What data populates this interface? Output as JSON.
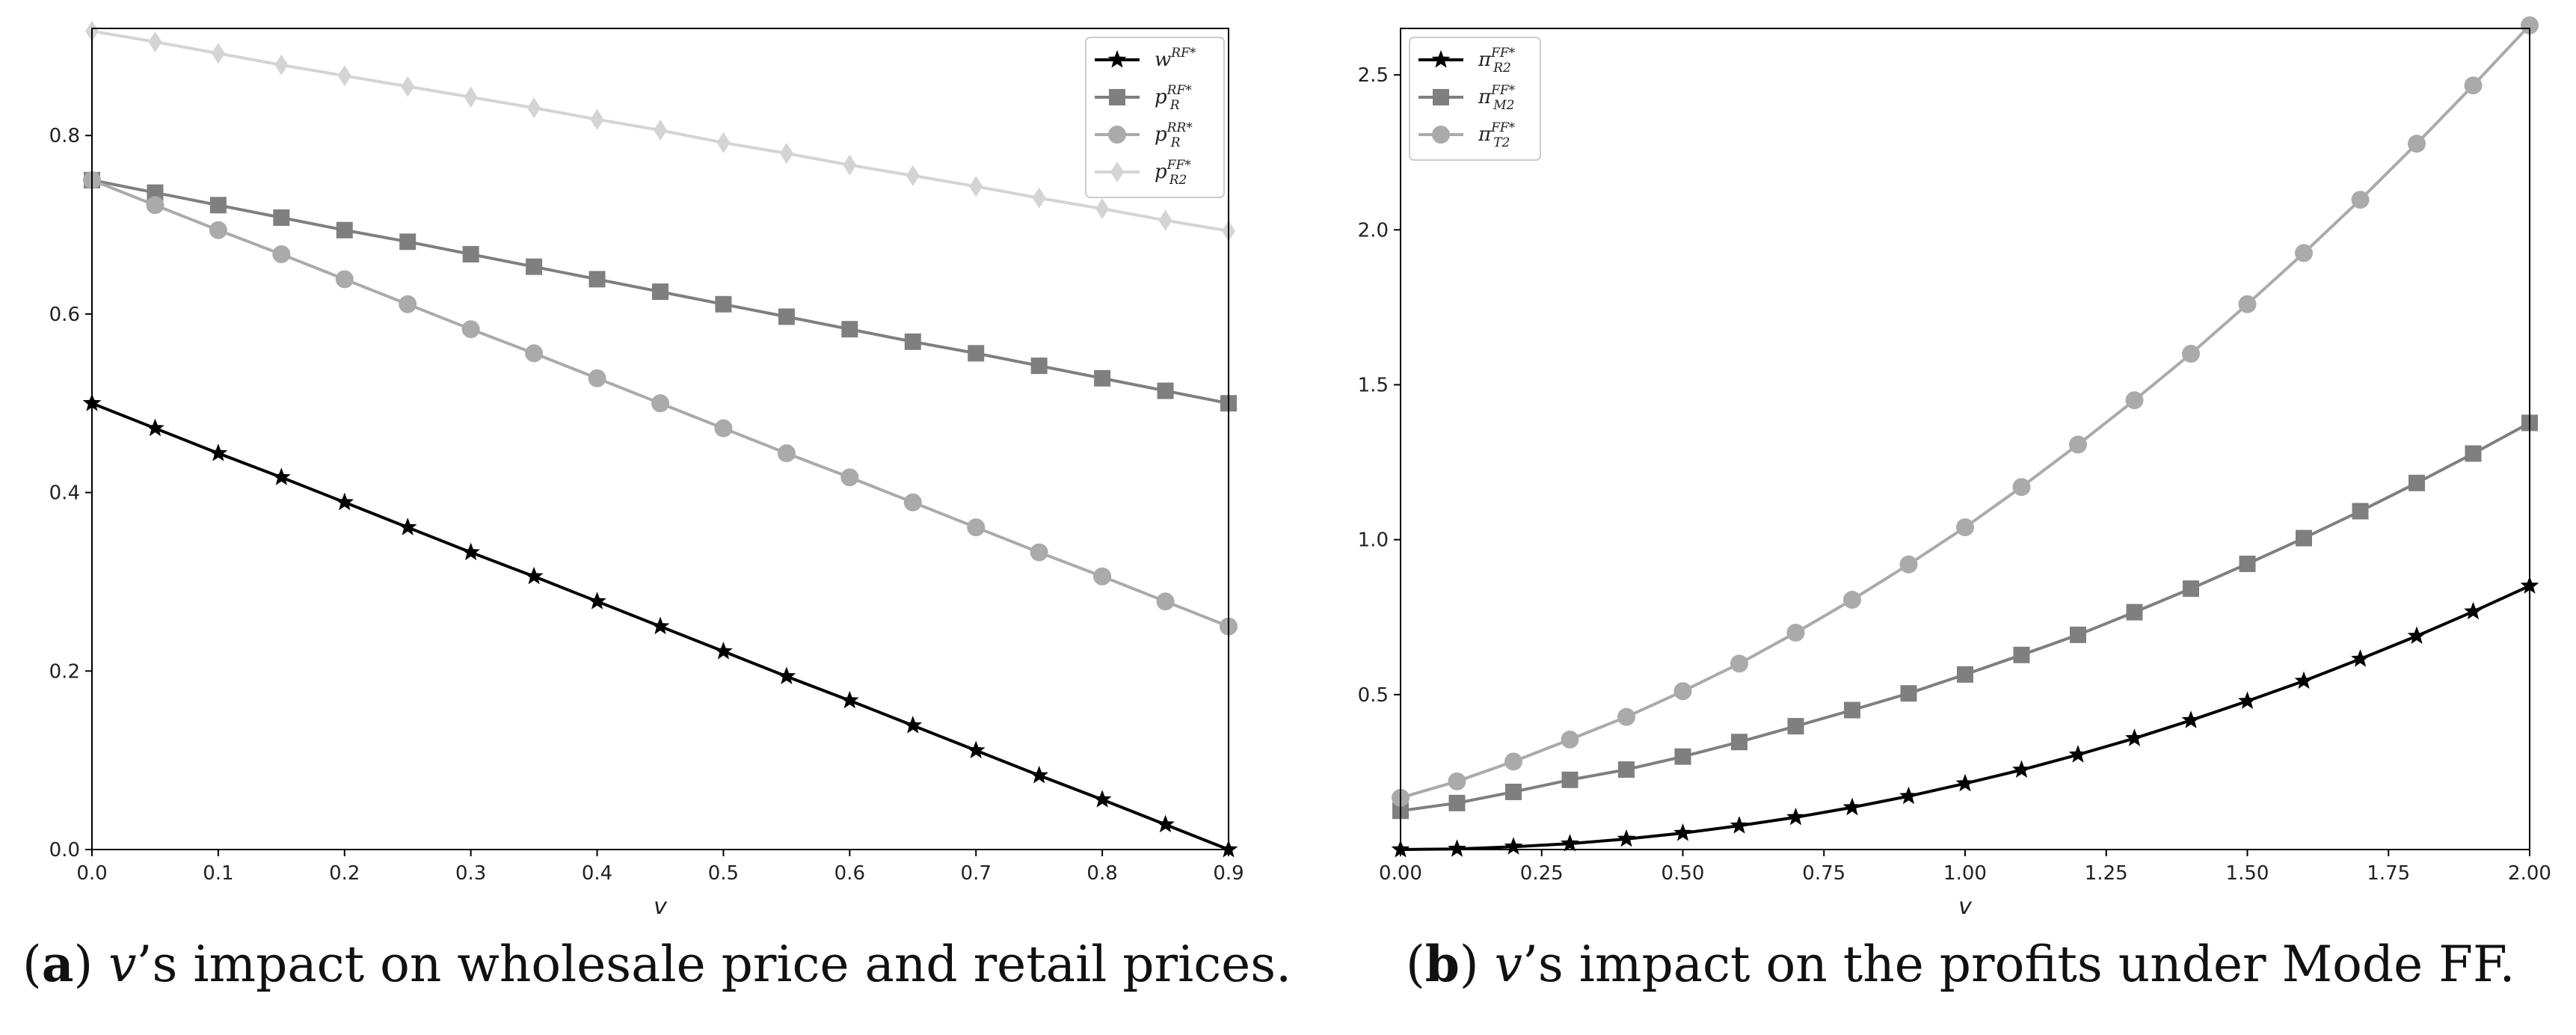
{
  "chart_data": [
    {
      "type": "line",
      "xlabel": "v",
      "xlim": [
        0.0,
        0.9
      ],
      "ylim": [
        0.0,
        0.92
      ],
      "xticks": [
        "0.0",
        "0.1",
        "0.2",
        "0.3",
        "0.4",
        "0.5",
        "0.6",
        "0.7",
        "0.8",
        "0.9"
      ],
      "yticks": [
        "0.0",
        "0.2",
        "0.4",
        "0.6",
        "0.8"
      ],
      "legend_position": "top-right",
      "grid": false,
      "x": [
        0.0,
        0.05,
        0.1,
        0.15,
        0.2,
        0.25,
        0.3,
        0.35,
        0.4,
        0.45,
        0.5,
        0.55,
        0.6,
        0.65,
        0.7,
        0.75,
        0.8,
        0.85,
        0.9
      ],
      "series": [
        {
          "name": "w",
          "sup": "RF*",
          "sub": "",
          "color": "#000000",
          "marker": "star",
          "values": [
            0.5,
            0.472,
            0.444,
            0.417,
            0.389,
            0.361,
            0.333,
            0.306,
            0.278,
            0.25,
            0.222,
            0.194,
            0.167,
            0.139,
            0.111,
            0.083,
            0.056,
            0.028,
            0.0
          ]
        },
        {
          "name": "p",
          "sup": "RF*",
          "sub": "R",
          "color": "#7f7f7f",
          "marker": "square",
          "values": [
            0.75,
            0.736,
            0.722,
            0.708,
            0.694,
            0.681,
            0.667,
            0.653,
            0.639,
            0.625,
            0.611,
            0.597,
            0.583,
            0.569,
            0.556,
            0.542,
            0.528,
            0.514,
            0.5
          ]
        },
        {
          "name": "p",
          "sup": "RR*",
          "sub": "R",
          "color": "#aaaaaa",
          "marker": "circle",
          "values": [
            0.75,
            0.722,
            0.694,
            0.667,
            0.639,
            0.611,
            0.583,
            0.556,
            0.528,
            0.5,
            0.472,
            0.444,
            0.417,
            0.389,
            0.361,
            0.333,
            0.306,
            0.278,
            0.25
          ]
        },
        {
          "name": "p",
          "sup": "FF*",
          "sub": "R2",
          "color": "#d4d4d4",
          "marker": "diamond",
          "values": [
            0.917,
            0.905,
            0.892,
            0.879,
            0.867,
            0.855,
            0.843,
            0.831,
            0.818,
            0.806,
            0.792,
            0.78,
            0.767,
            0.755,
            0.743,
            0.73,
            0.718,
            0.705,
            0.693
          ]
        }
      ]
    },
    {
      "type": "line",
      "xlabel": "v",
      "xlim": [
        0.0,
        2.0
      ],
      "ylim": [
        0.0,
        2.65
      ],
      "xticks": [
        "0.00",
        "0.25",
        "0.50",
        "0.75",
        "1.00",
        "1.25",
        "1.50",
        "1.75",
        "2.00"
      ],
      "yticks": [
        "0.5",
        "1.0",
        "1.5",
        "2.0",
        "2.5"
      ],
      "legend_position": "top-left",
      "grid": false,
      "x": [
        0.0,
        0.1,
        0.2,
        0.3,
        0.4,
        0.5,
        0.6,
        0.7,
        0.8,
        0.9,
        1.0,
        1.1,
        1.2,
        1.3,
        1.4,
        1.5,
        1.6,
        1.7,
        1.8,
        1.9,
        2.0
      ],
      "series": [
        {
          "name": "π",
          "sup": "FF*",
          "sub": "R2",
          "color": "#000000",
          "marker": "star",
          "values": [
            0.0,
            0.002,
            0.009,
            0.019,
            0.034,
            0.053,
            0.077,
            0.104,
            0.136,
            0.172,
            0.213,
            0.257,
            0.306,
            0.359,
            0.417,
            0.479,
            0.544,
            0.615,
            0.689,
            0.768,
            0.851
          ]
        },
        {
          "name": "π",
          "sup": "FF*",
          "sub": "M2",
          "color": "#7f7f7f",
          "marker": "square",
          "values": [
            0.125,
            0.15,
            0.186,
            0.225,
            0.258,
            0.3,
            0.347,
            0.398,
            0.45,
            0.504,
            0.565,
            0.628,
            0.693,
            0.766,
            0.842,
            0.922,
            1.005,
            1.092,
            1.183,
            1.278,
            1.377
          ]
        },
        {
          "name": "π",
          "sup": "FF*",
          "sub": "T2",
          "color": "#aaaaaa",
          "marker": "circle",
          "values": [
            0.167,
            0.22,
            0.284,
            0.355,
            0.428,
            0.511,
            0.6,
            0.7,
            0.806,
            0.92,
            1.04,
            1.17,
            1.307,
            1.45,
            1.6,
            1.76,
            1.925,
            2.097,
            2.278,
            2.466,
            2.66
          ]
        }
      ]
    }
  ],
  "captions": [
    {
      "label": "a",
      "text": "’s impact on wholesale price and retail prices."
    },
    {
      "label": "b",
      "text": "’s impact on the profits under Mode FF."
    }
  ],
  "caption_var": "v"
}
